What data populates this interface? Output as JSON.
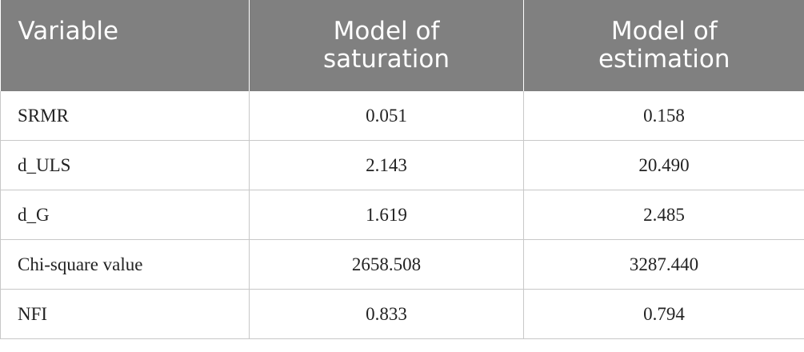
{
  "table": {
    "headers": {
      "col1": "Variable",
      "col2_line1": "Model of",
      "col2_line2": "saturation",
      "col3_line1": "Model of",
      "col3_line2": "estimation"
    },
    "rows": [
      {
        "variable": "SRMR",
        "saturation": "0.051",
        "estimation": "0.158"
      },
      {
        "variable": "d_ULS",
        "saturation": "2.143",
        "estimation": "20.490"
      },
      {
        "variable": "d_G",
        "saturation": "1.619",
        "estimation": "2.485"
      },
      {
        "variable": "Chi-square value",
        "saturation": "2658.508",
        "estimation": "3287.440"
      },
      {
        "variable": "NFI",
        "saturation": "0.833",
        "estimation": "0.794"
      }
    ]
  },
  "colors": {
    "header_bg": "#808080",
    "header_text": "#ffffff",
    "grid": "#c8c8c8"
  }
}
